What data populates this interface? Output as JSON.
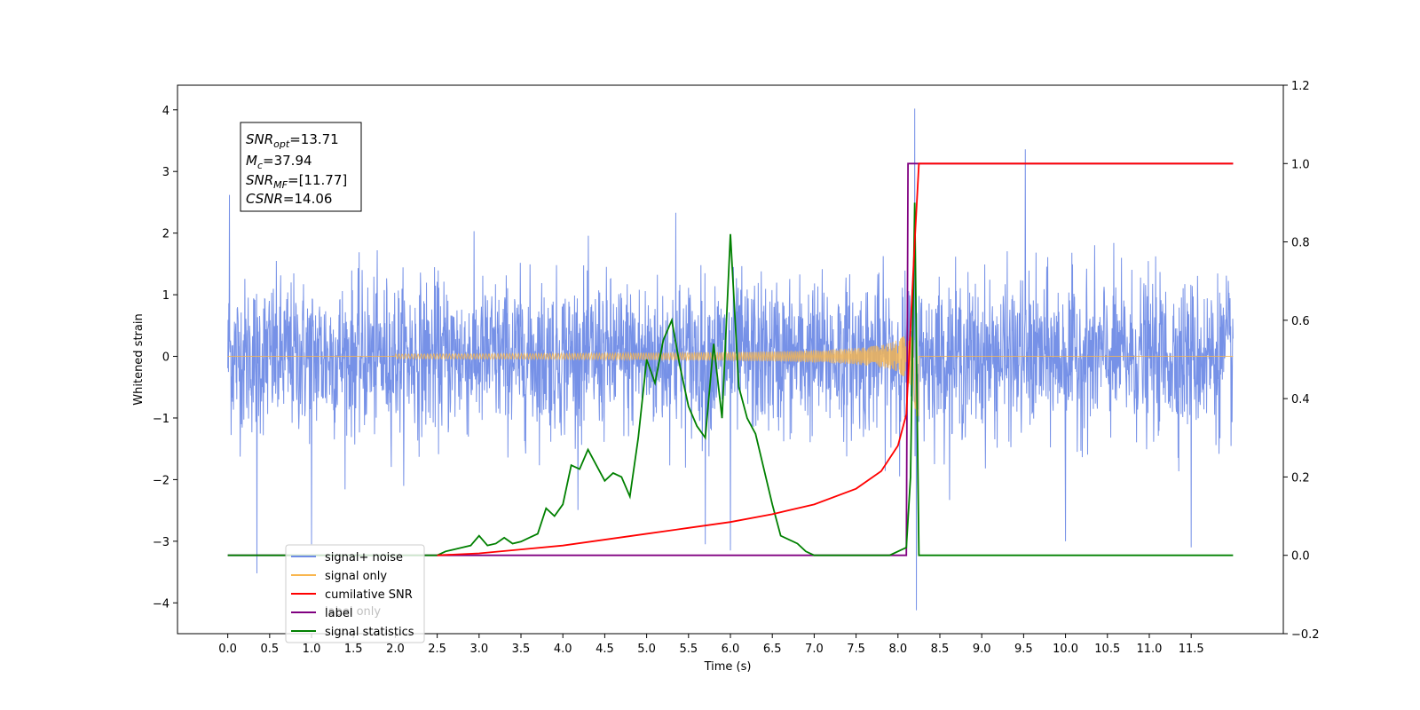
{
  "chart_data": {
    "type": "line",
    "xlabel": "Time (s)",
    "ylabel": "Whitened strain",
    "xlim": [
      -0.6,
      12.6
    ],
    "ylim": [
      -4.5,
      4.4
    ],
    "ylim_right": [
      -0.2,
      1.2
    ],
    "x_ticks": [
      "0.0",
      "0.5",
      "1.0",
      "1.5",
      "2.0",
      "2.5",
      "3.0",
      "3.5",
      "4.0",
      "4.5",
      "5.0",
      "5.5",
      "6.0",
      "6.5",
      "7.0",
      "7.5",
      "8.0",
      "8.5",
      "9.0",
      "9.5",
      "10.0",
      "10.5",
      "11.0",
      "11.5"
    ],
    "y_ticks_left": [
      "4",
      "3",
      "2",
      "1",
      "0",
      "−1",
      "−2",
      "−3",
      "−4"
    ],
    "y_ticks_right": [
      "1.2",
      "1.0",
      "0.8",
      "0.6",
      "0.4",
      "0.2",
      "0.0",
      "−0.2"
    ],
    "annotation": {
      "line1": {
        "main": "SNR",
        "sub": "opt",
        "rest": "=13.71"
      },
      "line2": {
        "main": "M",
        "sub": "c",
        "rest": "=37.94"
      },
      "line3": {
        "main": "SNR",
        "sub": "MF",
        "rest": "=[11.77]"
      },
      "line4": {
        "main": "CSNR",
        "rest": "=14.06"
      }
    },
    "legend": {
      "position": "lower-left",
      "items": [
        {
          "label": "signal+ noise",
          "color": "#6f8be6"
        },
        {
          "label": "signal only",
          "color": "#f9b64e"
        },
        {
          "label": "cumilative SNR",
          "color": "#ff0000"
        },
        {
          "label": "label",
          "color": "#800080"
        },
        {
          "label": "signal statistics",
          "color": "#008000"
        }
      ],
      "hidden_label": "label only"
    },
    "series": [
      {
        "name": "signal+ noise",
        "axis": "left",
        "color": "#6f8be6",
        "x_range": [
          0.0,
          12.0
        ],
        "noise_sigma": 0.62,
        "peaks": [
          {
            "x": 0.02,
            "y": 2.62
          },
          {
            "x": 0.35,
            "y": -3.52
          },
          {
            "x": 1.0,
            "y": -3.05
          },
          {
            "x": 5.35,
            "y": 2.33
          },
          {
            "x": 5.7,
            "y": -3.05
          },
          {
            "x": 6.0,
            "y": -3.15
          },
          {
            "x": 8.2,
            "y": 4.02
          },
          {
            "x": 8.22,
            "y": -4.12
          },
          {
            "x": 9.52,
            "y": 3.36
          },
          {
            "x": 11.5,
            "y": -3.1
          },
          {
            "x": 10.0,
            "y": -3.0
          }
        ]
      },
      {
        "name": "signal only",
        "axis": "left",
        "color": "#f9b64e",
        "chirp": {
          "start": 2.0,
          "merger": 8.22,
          "end": 8.25,
          "peak_amp": 1.2
        }
      },
      {
        "name": "cumilative SNR",
        "axis": "right",
        "color": "#ff0000",
        "x": [
          2.5,
          3.0,
          3.5,
          4.0,
          4.5,
          5.0,
          5.5,
          6.0,
          6.5,
          7.0,
          7.5,
          7.8,
          8.0,
          8.1,
          8.2,
          8.25,
          12.0
        ],
        "y": [
          0.0,
          0.005,
          0.015,
          0.025,
          0.04,
          0.055,
          0.07,
          0.085,
          0.105,
          0.13,
          0.17,
          0.215,
          0.28,
          0.36,
          0.8,
          1.0,
          1.0
        ]
      },
      {
        "name": "label",
        "axis": "right",
        "color": "#800080",
        "x": [
          0.0,
          8.1,
          8.12,
          8.2,
          8.22,
          12.0
        ],
        "y": [
          0.0,
          0.0,
          1.0,
          1.0,
          1.0,
          1.0
        ]
      },
      {
        "name": "signal statistics",
        "axis": "right",
        "color": "#008000",
        "x": [
          0.0,
          2.0,
          2.3,
          2.5,
          2.6,
          2.7,
          2.8,
          2.9,
          3.0,
          3.1,
          3.2,
          3.3,
          3.4,
          3.5,
          3.6,
          3.7,
          3.8,
          3.9,
          4.0,
          4.1,
          4.2,
          4.3,
          4.4,
          4.5,
          4.6,
          4.7,
          4.8,
          4.9,
          5.0,
          5.1,
          5.2,
          5.3,
          5.4,
          5.5,
          5.6,
          5.7,
          5.8,
          5.9,
          6.0,
          6.1,
          6.2,
          6.3,
          6.4,
          6.5,
          6.6,
          6.7,
          6.8,
          6.9,
          7.0,
          7.5,
          7.9,
          8.0,
          8.1,
          8.15,
          8.2,
          8.25,
          8.3,
          12.0
        ],
        "y": [
          0.0,
          0.0,
          0.0,
          0.0,
          0.01,
          0.015,
          0.02,
          0.025,
          0.05,
          0.025,
          0.03,
          0.045,
          0.03,
          0.035,
          0.045,
          0.055,
          0.12,
          0.1,
          0.13,
          0.23,
          0.22,
          0.27,
          0.23,
          0.19,
          0.21,
          0.2,
          0.15,
          0.3,
          0.5,
          0.44,
          0.55,
          0.6,
          0.48,
          0.38,
          0.33,
          0.3,
          0.54,
          0.35,
          0.82,
          0.43,
          0.35,
          0.31,
          0.22,
          0.13,
          0.05,
          0.04,
          0.03,
          0.01,
          0.0,
          0.0,
          0.0,
          0.01,
          0.02,
          0.2,
          0.9,
          0.0,
          0.0,
          0.0
        ]
      }
    ]
  }
}
